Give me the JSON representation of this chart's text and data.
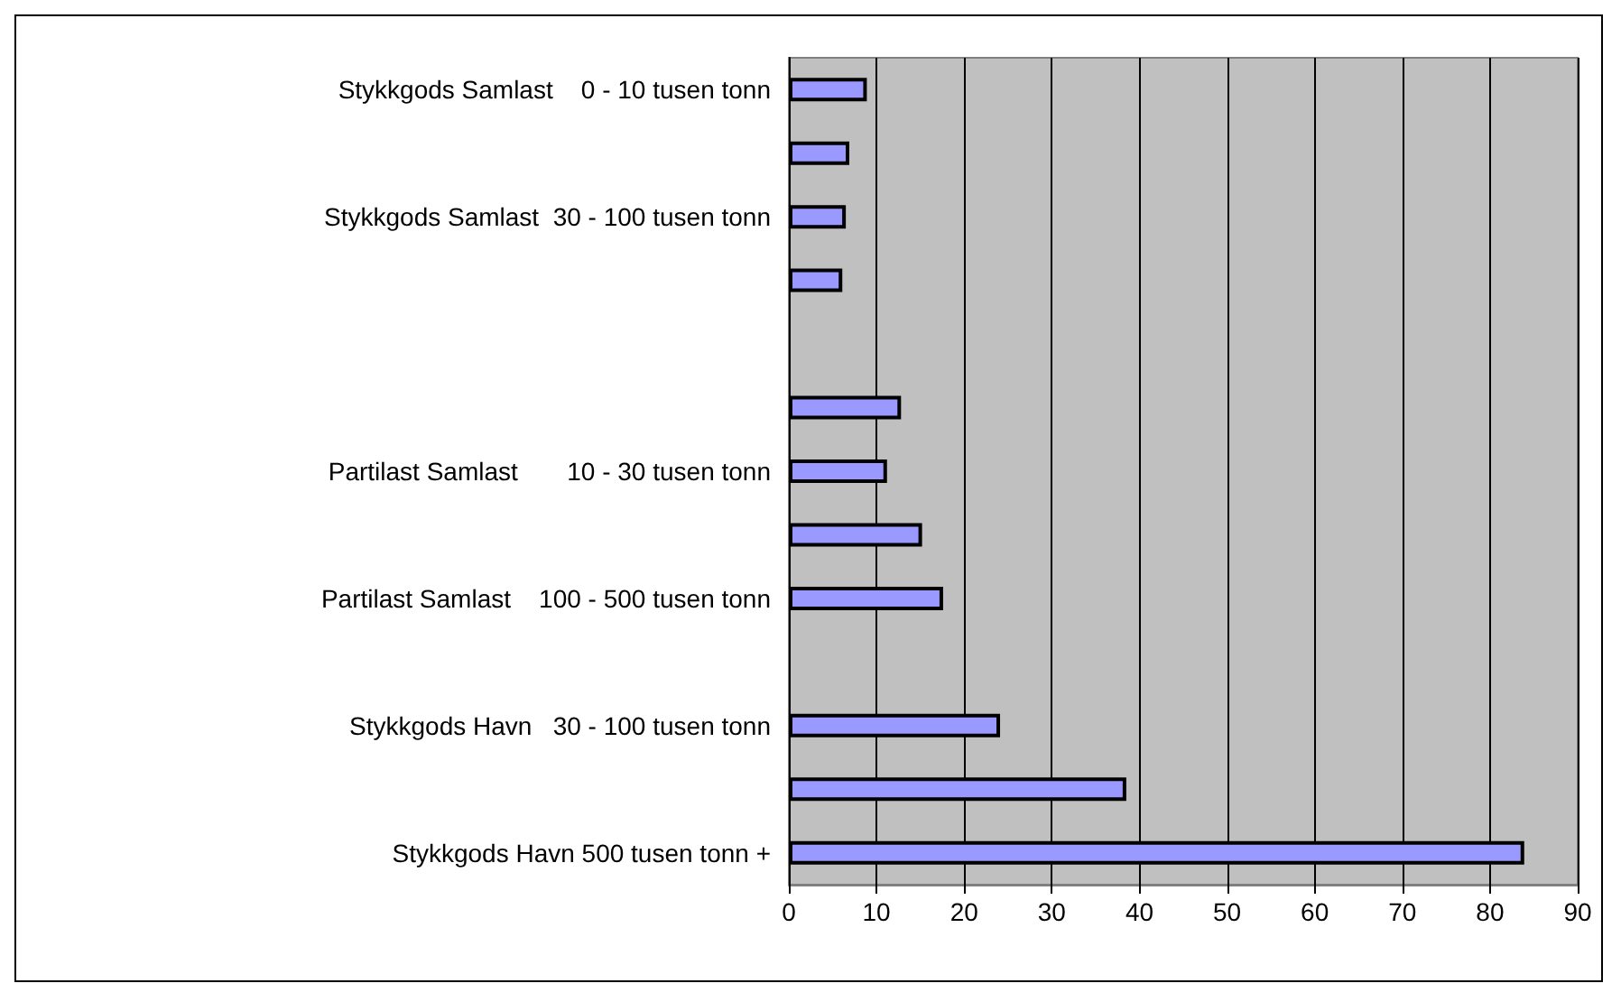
{
  "chart_data": {
    "type": "bar",
    "orientation": "horizontal",
    "categories": [
      "Stykkgods Samlast    0 - 10 tusen tonn",
      null,
      "Stykkgods Samlast  30 - 100 tusen tonn",
      null,
      null,
      null,
      "Partilast Samlast       10 - 30 tusen tonn",
      null,
      "Partilast Samlast    100 - 500 tusen tonn",
      null,
      "Stykkgods Havn   30 - 100 tusen tonn",
      null,
      "Stykkgods Havn 500 tusen tonn +"
    ],
    "values": [
      8.9,
      6.9,
      6.5,
      6.1,
      null,
      12.8,
      11.2,
      15.2,
      17.6,
      null,
      24.1,
      38.5,
      83.9
    ],
    "color": "#9999ff",
    "xlim": [
      0,
      90
    ],
    "xticks": [
      0,
      10,
      20,
      30,
      40,
      50,
      60,
      70,
      80,
      90
    ],
    "grid": "x"
  }
}
